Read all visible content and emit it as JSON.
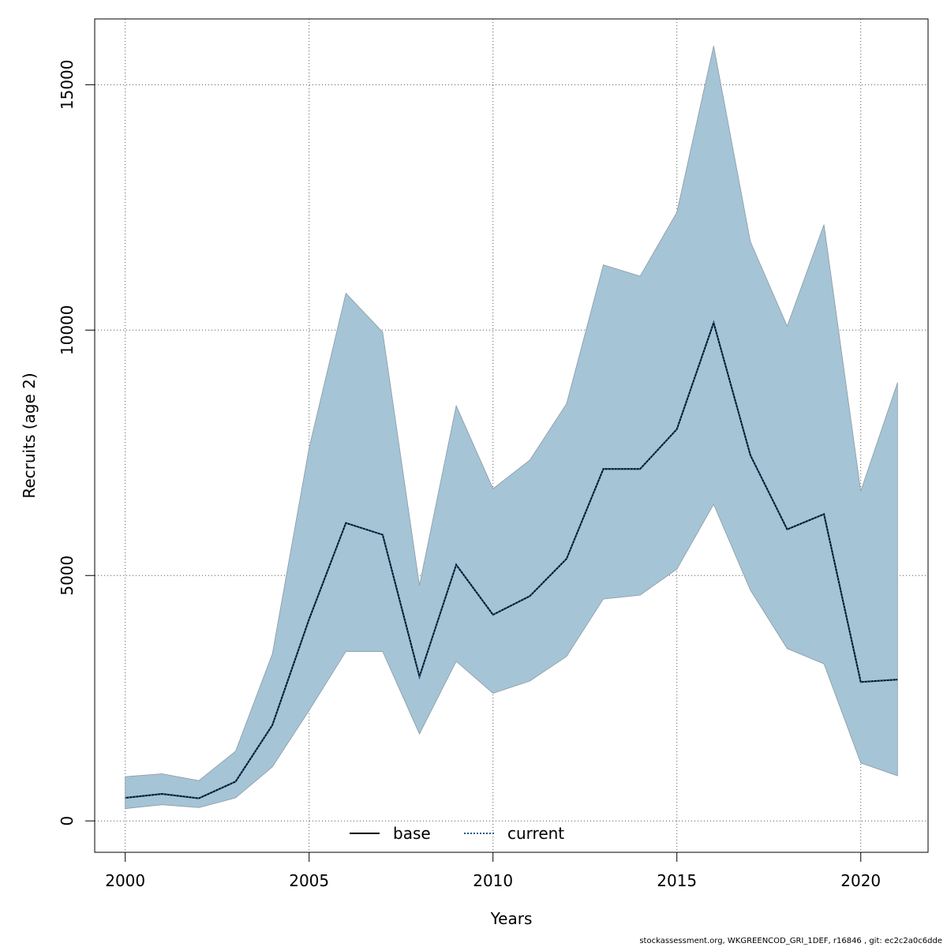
{
  "chart_data": {
    "type": "area",
    "xlabel": "Years",
    "ylabel": "Recruits (age 2)",
    "xlim": [
      1999.17,
      2021.83
    ],
    "ylim": [
      -640,
      16340
    ],
    "x_ticks": [
      2000,
      2005,
      2010,
      2015,
      2020
    ],
    "y_ticks": [
      0,
      5000,
      10000,
      15000
    ],
    "grid": true,
    "legend_position": "bottom-center",
    "x": [
      2000,
      2001,
      2002,
      2003,
      2004,
      2005,
      2006,
      2007,
      2008,
      2009,
      2010,
      2011,
      2012,
      2013,
      2014,
      2015,
      2016,
      2017,
      2018,
      2019,
      2020,
      2021
    ],
    "band": {
      "lower": [
        250,
        330,
        270,
        470,
        1100,
        2250,
        3450,
        3450,
        1770,
        3250,
        2600,
        2850,
        3350,
        4520,
        4600,
        5130,
        6450,
        4700,
        3510,
        3200,
        1180,
        920
      ],
      "upper": [
        900,
        960,
        820,
        1420,
        3400,
        7600,
        10750,
        9960,
        4800,
        8460,
        6770,
        7350,
        8500,
        11330,
        11100,
        12400,
        15790,
        11800,
        10080,
        12150,
        6720,
        8930
      ],
      "color": "#a5c4d6"
    },
    "series": [
      {
        "name": "base",
        "values": [
          470,
          550,
          460,
          800,
          1950,
          4110,
          6070,
          5830,
          2940,
          5220,
          4200,
          4580,
          5340,
          7170,
          7170,
          7980,
          10150,
          7450,
          5940,
          6250,
          2830,
          2880
        ],
        "color": "#000000",
        "style": "solid"
      },
      {
        "name": "current",
        "values": [
          470,
          550,
          460,
          800,
          1950,
          4110,
          6070,
          5830,
          2940,
          5220,
          4200,
          4580,
          5340,
          7170,
          7170,
          7980,
          10150,
          7450,
          5940,
          6250,
          2830,
          2880
        ],
        "color": "#1f5b8a",
        "style": "dotted"
      }
    ]
  },
  "footer_text": "stockassessment.org, WKGREENCOD_GRI_1DEF, r16846 , git: ec2c2a0c6dde"
}
